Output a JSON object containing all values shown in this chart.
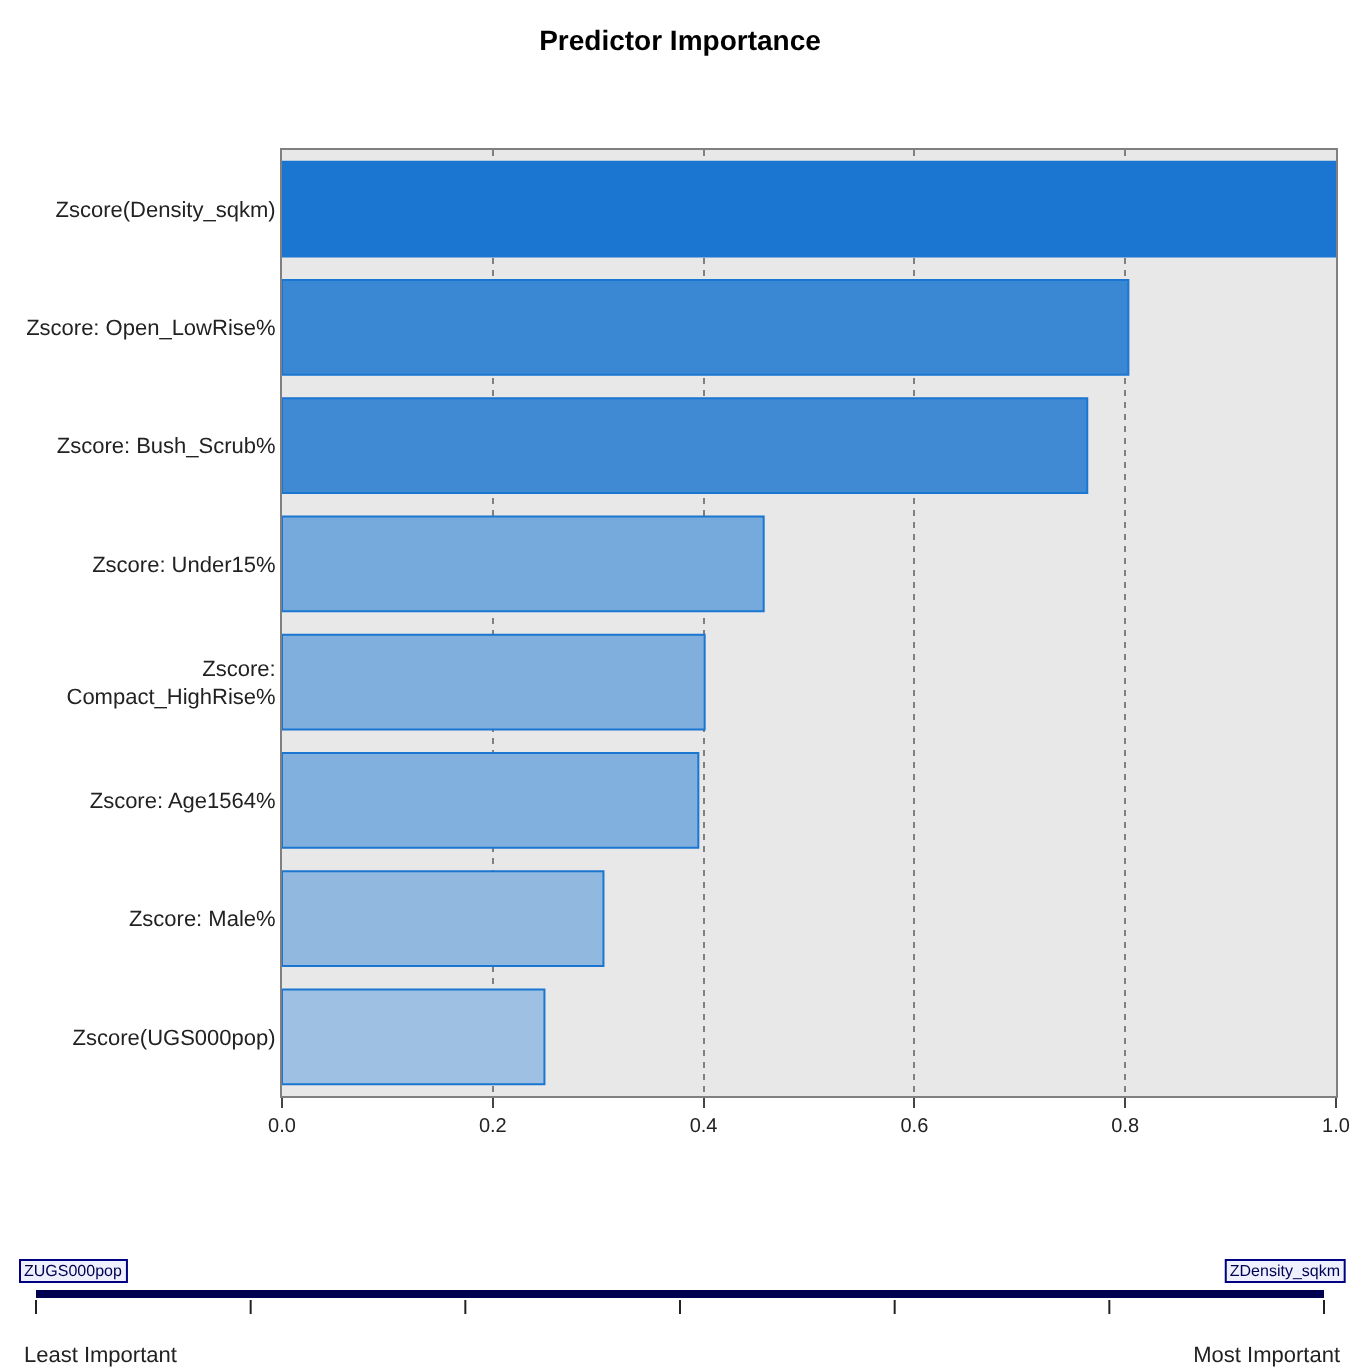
{
  "chart_data": {
    "type": "bar",
    "orientation": "horizontal",
    "title": "Predictor Importance",
    "categories": [
      "Zscore(Density_sqkm)",
      "Zscore: Open_LowRise%",
      "Zscore: Bush_Scrub%",
      "Zscore: Under15%",
      "Zscore: Compact_HighRise%",
      "Zscore: Age1564%",
      "Zscore: Male%",
      "Zscore(UGS000pop)"
    ],
    "values": [
      1.0,
      0.803,
      0.764,
      0.457,
      0.401,
      0.395,
      0.305,
      0.249
    ],
    "colors": [
      "#1a76d0",
      "#3a88d4",
      "#408ad4",
      "#76a9dc",
      "#80afde",
      "#82b0de",
      "#91b9e0",
      "#9dc0e3"
    ],
    "xlim": [
      0,
      1
    ],
    "xticks": [
      {
        "value": 0,
        "label": "0.0"
      },
      0.2,
      0.4,
      0.6,
      0.8,
      {
        "value": 1,
        "label": "1.0"
      }
    ],
    "grid": "x",
    "legend": false,
    "annotations": [
      "ZUGS000pop",
      "ZDensity_sqkm",
      "Least Important",
      "Most Important"
    ]
  }
}
